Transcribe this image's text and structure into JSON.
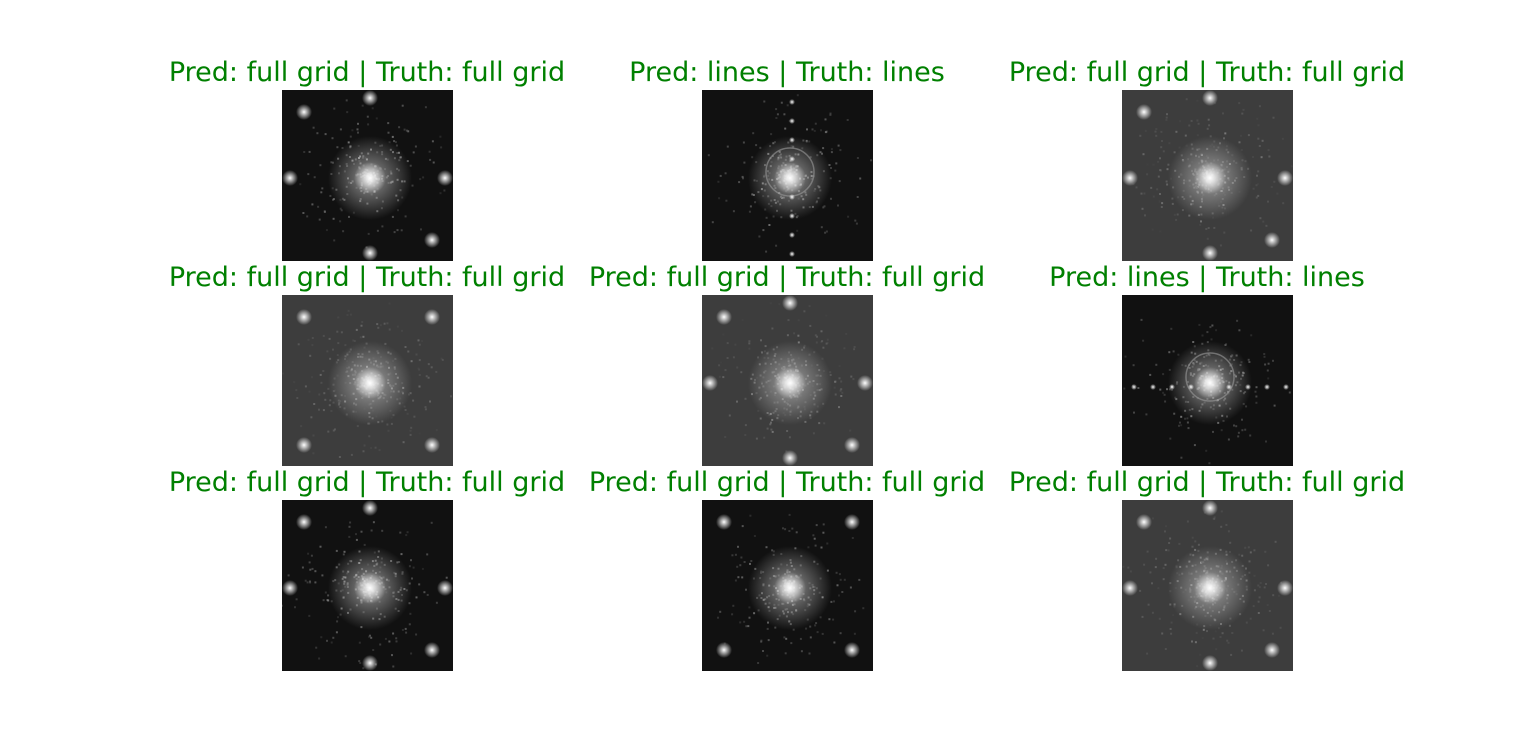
{
  "colors": {
    "title_correct": "#008000",
    "background": "#ffffff"
  },
  "panels": [
    {
      "title": "Pred: full grid | Truth: full grid",
      "image": "fft-full-grid-pattern",
      "dark": true
    },
    {
      "title": "Pred: lines | Truth: lines",
      "image": "fft-lines-pattern",
      "dark": true
    },
    {
      "title": "Pred: full grid | Truth: full grid",
      "image": "fft-full-grid-pattern",
      "dark": false
    },
    {
      "title": "Pred: full grid | Truth: full grid",
      "image": "fft-full-grid-pattern",
      "dark": false
    },
    {
      "title": "Pred: full grid | Truth: full grid",
      "image": "fft-full-grid-pattern",
      "dark": false
    },
    {
      "title": "Pred: lines | Truth: lines",
      "image": "fft-lines-pattern",
      "dark": true
    },
    {
      "title": "Pred: full grid | Truth: full grid",
      "image": "fft-full-grid-pattern",
      "dark": true
    },
    {
      "title": "Pred: full grid | Truth: full grid",
      "image": "fft-full-grid-pattern",
      "dark": true
    },
    {
      "title": "Pred: full grid | Truth: full grid",
      "image": "fft-full-grid-pattern",
      "dark": false
    }
  ]
}
